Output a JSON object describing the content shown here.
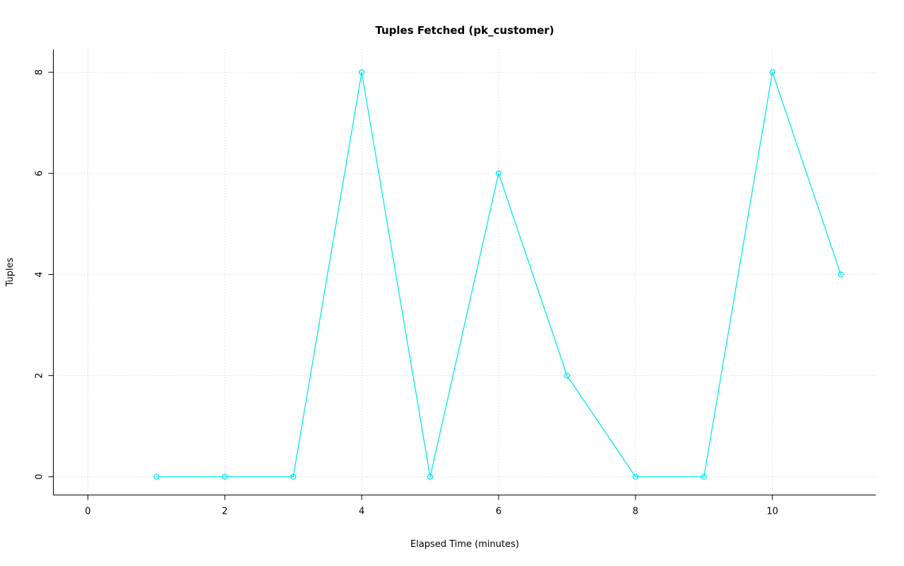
{
  "chart_data": {
    "type": "line",
    "title": "Tuples Fetched (pk_customer)",
    "xlabel": "Elapsed Time (minutes)",
    "ylabel": "Tuples",
    "x": [
      1,
      2,
      3,
      4,
      5,
      6,
      7,
      8,
      9,
      10,
      11
    ],
    "values": [
      0,
      0,
      0,
      8,
      0,
      6,
      2,
      0,
      0,
      8,
      4
    ],
    "series_name": "Tuples Fetched",
    "xlim": [
      -0.505,
      11.51
    ],
    "ylim": [
      -0.36,
      8.45
    ],
    "xticks": [
      0,
      2,
      4,
      6,
      8,
      10
    ],
    "yticks": [
      0,
      2,
      4,
      6,
      8
    ],
    "grid": true,
    "legend": "none",
    "marker": "open-circle",
    "colors": {
      "line": "#00e8ee",
      "grid": "#c9c9c9",
      "axis": "#000000",
      "background": "#ffffff"
    }
  }
}
